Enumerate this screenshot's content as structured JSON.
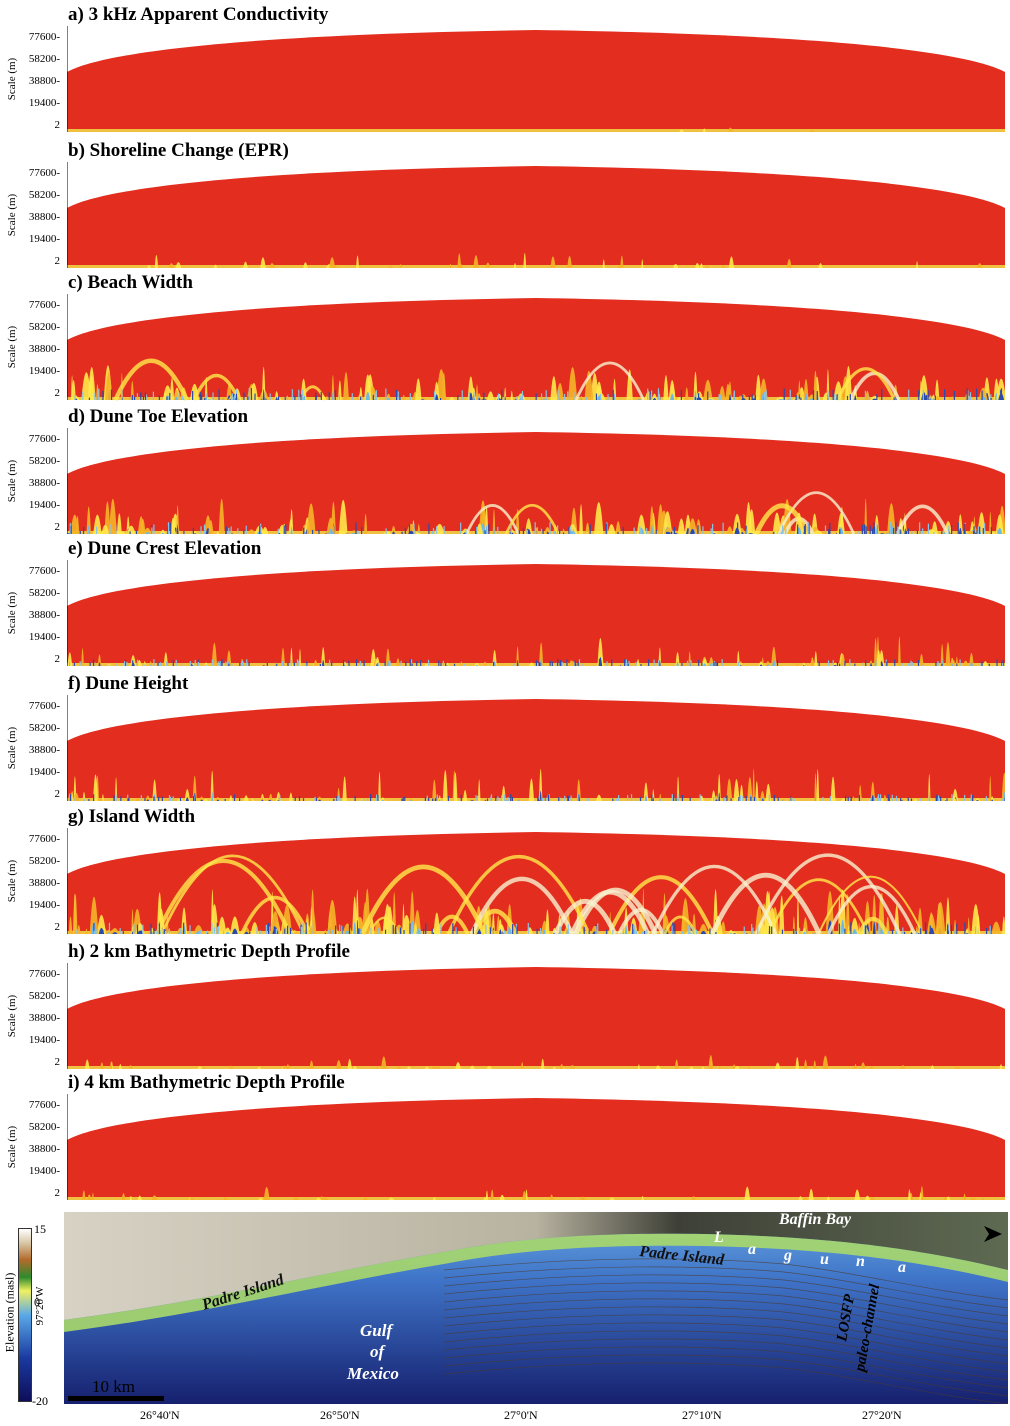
{
  "chart_data": [
    {
      "type": "heatmap",
      "title": "a) 3 kHz Apparent Conductivity",
      "ylabel": "Scale (m)",
      "yticks": [
        "77600-",
        "58200-",
        "38800-",
        "19400-",
        "2"
      ],
      "ylim": [
        2,
        77600
      ],
      "colormap": [
        "#1f3c9a",
        "#6fb8e6",
        "#f2f2f2",
        "#ffe94a",
        "#f2a122",
        "#e32d1e"
      ],
      "dominant_color": "#e32d1e",
      "activity": "minimal"
    },
    {
      "type": "heatmap",
      "title": "b) Shoreline Change (EPR)",
      "ylabel": "Scale (m)",
      "yticks": [
        "77600-",
        "58200-",
        "38800-",
        "19400-",
        "2"
      ],
      "ylim": [
        2,
        77600
      ],
      "dominant_color": "#e32d1e",
      "activity": "low"
    },
    {
      "type": "heatmap",
      "title": "c) Beach Width",
      "ylabel": "Scale (m)",
      "yticks": [
        "77600-",
        "58200-",
        "38800-",
        "19400-",
        "2"
      ],
      "ylim": [
        2,
        77600
      ],
      "dominant_color": "#e32d1e",
      "activity": "high"
    },
    {
      "type": "heatmap",
      "title": "d) Dune Toe Elevation",
      "ylabel": "Scale (m)",
      "yticks": [
        "77600-",
        "58200-",
        "38800-",
        "19400-",
        "2"
      ],
      "ylim": [
        2,
        77600
      ],
      "dominant_color": "#e32d1e",
      "activity": "high"
    },
    {
      "type": "heatmap",
      "title": "e) Dune Crest Elevation",
      "ylabel": "Scale (m)",
      "yticks": [
        "77600-",
        "58200-",
        "38800-",
        "19400-",
        "2"
      ],
      "ylim": [
        2,
        77600
      ],
      "dominant_color": "#e32d1e",
      "activity": "medium"
    },
    {
      "type": "heatmap",
      "title": "f) Dune Height",
      "ylabel": "Scale (m)",
      "yticks": [
        "77600-",
        "58200-",
        "38800-",
        "19400-",
        "2"
      ],
      "ylim": [
        2,
        77600
      ],
      "dominant_color": "#e32d1e",
      "activity": "medium"
    },
    {
      "type": "heatmap",
      "title": "g) Island Width",
      "ylabel": "Scale (m)",
      "yticks": [
        "77600-",
        "58200-",
        "38800-",
        "19400-",
        "2"
      ],
      "ylim": [
        2,
        77600
      ],
      "dominant_color": "#e32d1e",
      "activity": "very high"
    },
    {
      "type": "heatmap",
      "title": "h) 2 km Bathymetric Depth Profile",
      "ylabel": "Scale (m)",
      "yticks": [
        "77600-",
        "58200-",
        "38800-",
        "19400-",
        "2"
      ],
      "ylim": [
        2,
        77600
      ],
      "dominant_color": "#e32d1e",
      "activity": "low"
    },
    {
      "type": "heatmap",
      "title": "i) 4 km Bathymetric Depth Profile",
      "ylabel": "Scale (m)",
      "yticks": [
        "77600-",
        "58200-",
        "38800-",
        "19400-",
        "2"
      ],
      "ylim": [
        2,
        77600
      ],
      "dominant_color": "#e32d1e",
      "activity": "low"
    }
  ],
  "map": {
    "colorbar_label": "Elevation (masl)",
    "colorbar_ticks": [
      "15",
      "0",
      "-20"
    ],
    "colorbar_colors": [
      "#ffffff",
      "#b36a2a",
      "#2e8b2e",
      "#f0f060",
      "#5aa8e8",
      "#1a3aa0",
      "#0e0e5a"
    ],
    "longitude_label": "97°20'W",
    "scale_bar": "10 km",
    "labels": {
      "padre_island_left": "Padre Island",
      "padre_island_right": "Padre Island",
      "baffin_bay": "Baffin Bay",
      "laguna": [
        "L",
        "a",
        "g",
        "u",
        "n",
        "a"
      ],
      "gulf": "Gulf",
      "of": "of",
      "mexico": "Mexico",
      "losfp": "LOSFP",
      "paleo_channel": "paleo-channel"
    },
    "lat_ticks": [
      "26°40'N",
      "26°50'N",
      "27°0'N",
      "27°10'N",
      "27°20'N"
    ],
    "colors": {
      "land": "#c8c2b0",
      "dark_land": "#3a3d33",
      "shore": "#a8d86a",
      "shallow_water": "#6aa0d8",
      "deep_water": "#1a2a8a"
    }
  }
}
